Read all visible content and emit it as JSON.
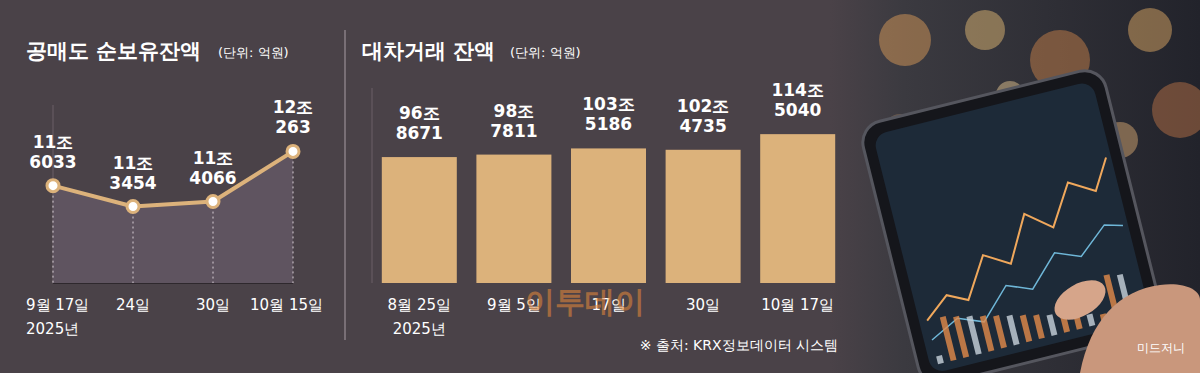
{
  "chart_data": [
    {
      "type": "line",
      "title": "공매도 순보유잔액",
      "subtitle": "(단위: 억원)",
      "categories": [
        "9월 17일\n2025년",
        "24일",
        "30일",
        "10월 15일"
      ],
      "values": [
        116033,
        113454,
        114066,
        120263
      ],
      "value_labels": [
        "11조\n6033",
        "11조\n3454",
        "11조\n4066",
        "12조\n263"
      ],
      "color": "#dcb27b",
      "marker": "circle",
      "data_labels": true,
      "tick_labels": "x",
      "ylim": [
        104000,
        126000
      ],
      "grid": false
    },
    {
      "type": "bar",
      "title": "대차거래 잔액",
      "subtitle": "(단위: 억원)",
      "categories": [
        "8월 25일\n2025년",
        "9월 5일",
        "17일",
        "30일",
        "10월 17일"
      ],
      "values": [
        968671,
        987811,
        1035186,
        1024735,
        1145040
      ],
      "value_labels": [
        "96조\n8671",
        "98조\n7811",
        "103조\n5186",
        "102조\n4735",
        "114조\n5040"
      ],
      "color": "#dcb27b",
      "data_labels": true,
      "tick_labels": "x",
      "ylim": [
        0,
        1500000
      ],
      "grid": false
    }
  ],
  "notes": {
    "watermark": "이투데이",
    "source": "※ 출처: KRX정보데이터 시스템",
    "credit": "미드저니"
  }
}
